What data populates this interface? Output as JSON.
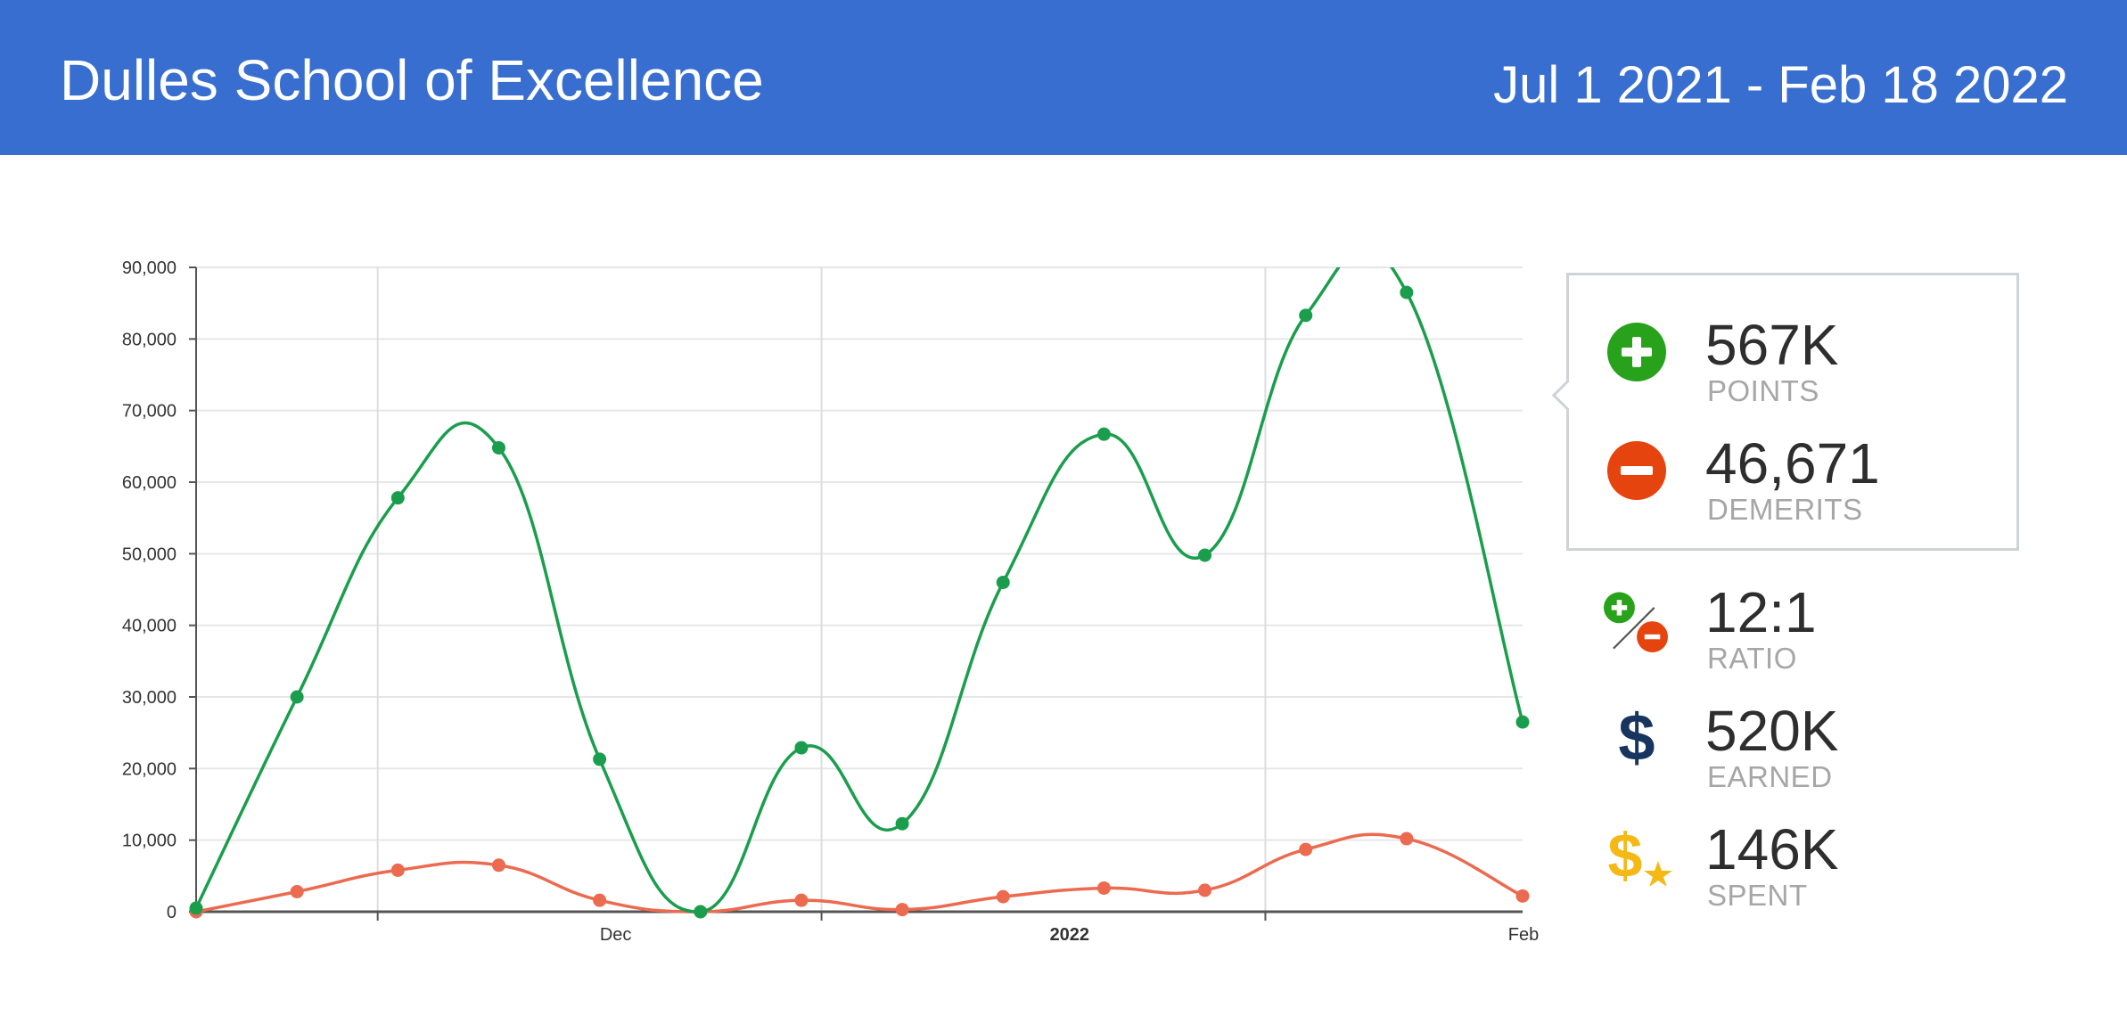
{
  "header": {
    "title": "Dulles School of Excellence",
    "date_range": "Jul 1 2021 - Feb 18 2022",
    "background": "#386ecf"
  },
  "stats": {
    "points": {
      "value": "567K",
      "label": "POINTS",
      "icon": "plus-circle-icon",
      "color": "#28a21a"
    },
    "demerits": {
      "value": "46,671",
      "label": "DEMERITS",
      "icon": "minus-circle-icon",
      "color": "#e6440f"
    },
    "ratio": {
      "value": "12:1",
      "label": "RATIO",
      "icon": "ratio-icon"
    },
    "earned": {
      "value": "520K",
      "label": "EARNED",
      "icon": "dollar-icon",
      "color": "#17355e"
    },
    "spent": {
      "value": "146K",
      "label": "SPENT",
      "icon": "dollar-star-icon",
      "color": "#f5b916"
    }
  },
  "chart_data": {
    "type": "line",
    "smooth": true,
    "x_ticks": [
      {
        "label": "Dec",
        "bold": false,
        "x": 4.0
      },
      {
        "label": "2022",
        "bold": true,
        "x": 8.5
      },
      {
        "label": "Feb",
        "bold": false,
        "x": 13.0
      }
    ],
    "x_gridlines": [
      1.8,
      6.2,
      10.6
    ],
    "xlim": [
      0,
      13.15
    ],
    "ylim": [
      0,
      90000
    ],
    "y_ticks": [
      "0",
      "10,000",
      "20,000",
      "30,000",
      "40,000",
      "50,000",
      "60,000",
      "70,000",
      "80,000",
      "90,000"
    ],
    "y_tick_values": [
      0,
      10000,
      20000,
      30000,
      40000,
      50000,
      60000,
      70000,
      80000,
      90000
    ],
    "grid": true,
    "series": [
      {
        "color": "#1a9e4d",
        "x": [
          0,
          1,
          2,
          3,
          4,
          5,
          6,
          7,
          8,
          9,
          10,
          11,
          12,
          13.15
        ],
        "values": [
          500,
          30000,
          57800,
          64800,
          21300,
          0,
          22900,
          12300,
          46000,
          66700,
          49800,
          83300,
          86500,
          26500
        ]
      },
      {
        "color": "#ec6a4f",
        "x": [
          0,
          1,
          2,
          3,
          4,
          5,
          6,
          7,
          8,
          9,
          10,
          11,
          12,
          13.15
        ],
        "values": [
          0,
          2800,
          5800,
          6500,
          1600,
          0,
          1600,
          300,
          2100,
          3300,
          3000,
          8700,
          10200,
          2200
        ]
      }
    ]
  }
}
